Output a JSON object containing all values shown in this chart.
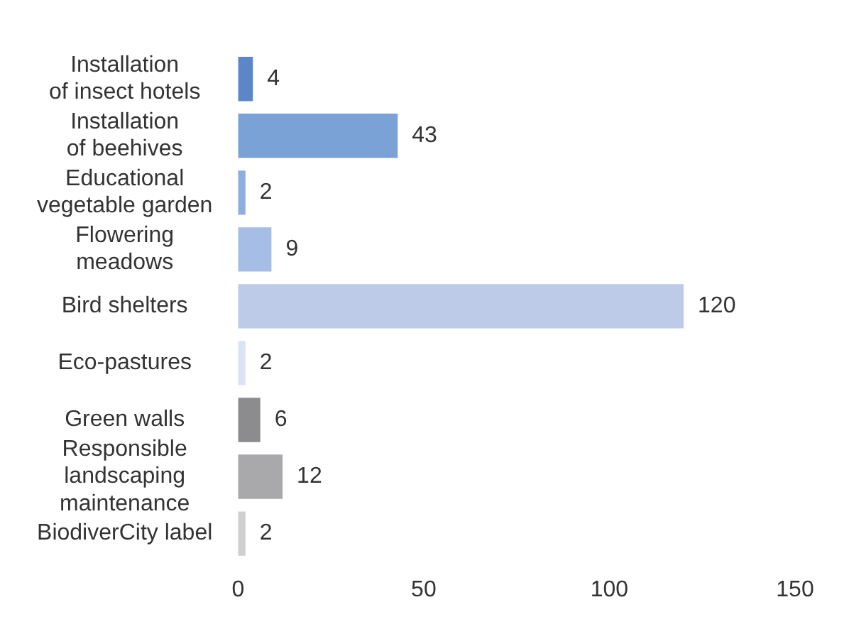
{
  "chart_data": {
    "type": "bar",
    "orientation": "horizontal",
    "categories": [
      "Installation\nof insect hotels",
      "Installation\nof beehives",
      "Educational\nvegetable garden",
      "Flowering\nmeadows",
      "Bird shelters",
      "Eco-pastures",
      "Green walls",
      "Responsible\nlandscaping\nmaintenance",
      "BiodiverCity label"
    ],
    "values": [
      4,
      43,
      2,
      9,
      120,
      2,
      6,
      12,
      2
    ],
    "colors": [
      "#5b87c9",
      "#7ba2d6",
      "#8eaee0",
      "#a6bde5",
      "#bdcbe8",
      "#dbe3f4",
      "#8c8c8e",
      "#a9a9ab",
      "#cfcfd0"
    ],
    "xlim": [
      0,
      150
    ],
    "xticks": [
      0,
      50,
      100,
      150
    ],
    "grid": false,
    "legend": false,
    "data_labels": true
  }
}
